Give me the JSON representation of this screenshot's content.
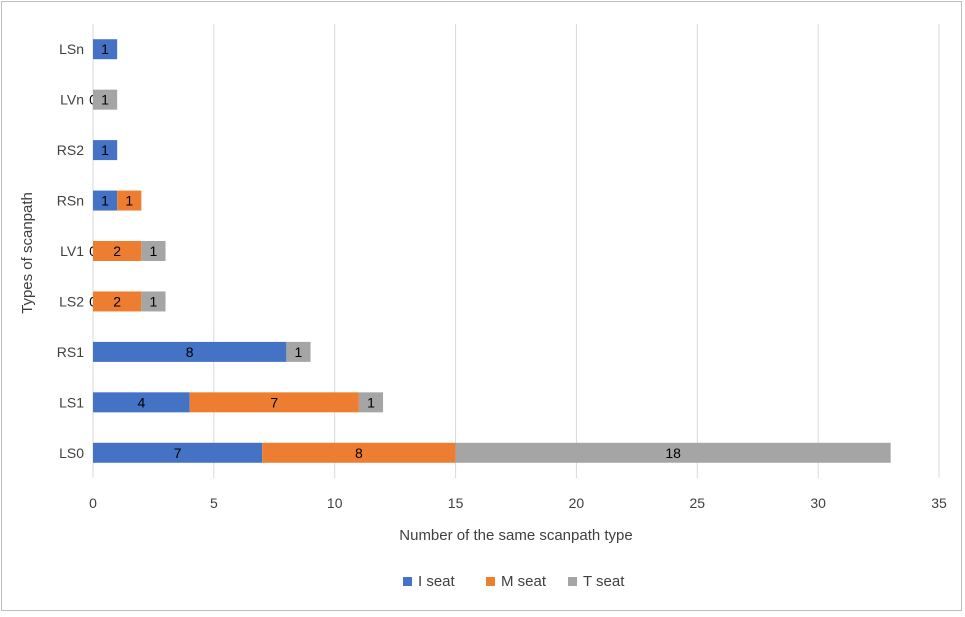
{
  "chart_data": {
    "type": "bar",
    "orientation": "horizontal",
    "stacked": true,
    "categories": [
      "LS0",
      "LS1",
      "RS1",
      "LS2",
      "LV1",
      "RSn",
      "RS2",
      "LVn",
      "LSn"
    ],
    "series": [
      {
        "name": "I seat",
        "color": "#4472c4",
        "values": [
          7,
          4,
          8,
          0,
          0,
          1,
          1,
          0,
          1
        ]
      },
      {
        "name": "M seat",
        "color": "#ed7d31",
        "values": [
          8,
          7,
          0,
          2,
          2,
          1,
          0,
          0,
          0
        ]
      },
      {
        "name": "T seat",
        "color": "#a5a5a5",
        "values": [
          18,
          1,
          1,
          1,
          1,
          0,
          0,
          1,
          0
        ]
      }
    ],
    "data_labels": [
      [
        "7",
        "8",
        "18"
      ],
      [
        "4",
        "7",
        "1"
      ],
      [
        "8",
        "",
        "1"
      ],
      [
        "0",
        "2",
        "1"
      ],
      [
        "0",
        "2",
        "1"
      ],
      [
        "1",
        "1",
        ""
      ],
      [
        "1",
        "",
        ""
      ],
      [
        "0",
        "",
        "1"
      ],
      [
        "1",
        "",
        ""
      ]
    ],
    "xlabel": "Number of the same scanpath type",
    "ylabel": "Types of scanpath",
    "xlim": [
      0,
      35
    ],
    "xticks": [
      0,
      5,
      10,
      15,
      20,
      25,
      30,
      35
    ],
    "grid": "vertical",
    "legend_position": "bottom"
  }
}
